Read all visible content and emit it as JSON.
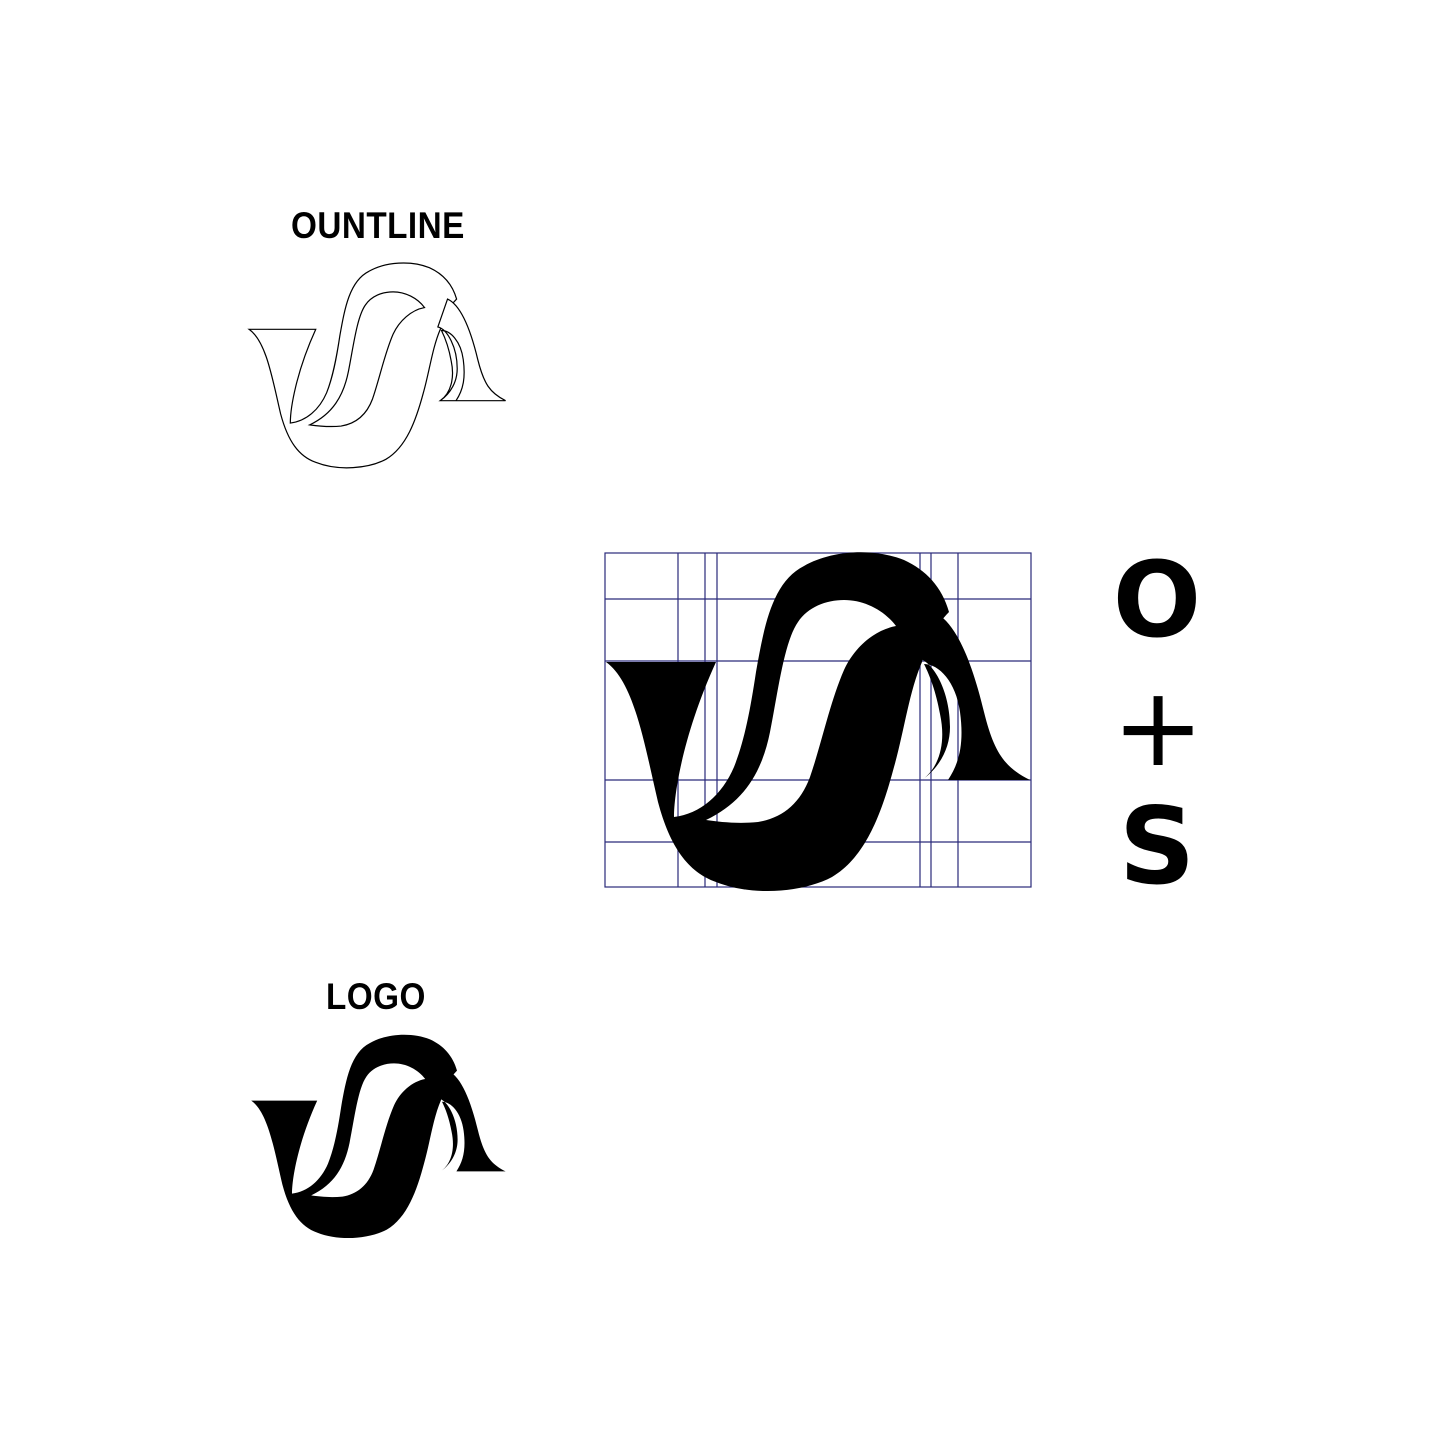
{
  "labels": {
    "outline": "OUNTLINE",
    "logo": "LOGO"
  },
  "formula": {
    "first": "O",
    "operator": "+",
    "second": "S"
  },
  "colors": {
    "ink": "#000000",
    "grid": "#2a2a7a",
    "background": "#ffffff"
  },
  "icons": {
    "mark": "os-monogram-icon"
  }
}
